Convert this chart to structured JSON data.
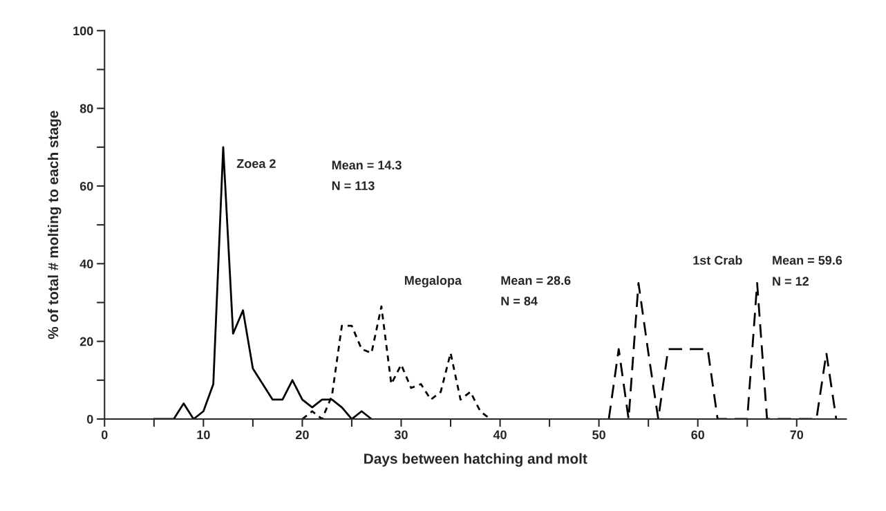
{
  "chart_data": {
    "type": "line",
    "xlabel": "Days between hatching and molt",
    "ylabel": "% of total # molting to each stage",
    "xlim": [
      0,
      75
    ],
    "ylim": [
      0,
      100
    ],
    "xticks": [
      0,
      {
        "value": 5,
        "label": null
      },
      10,
      {
        "value": 15,
        "label": null
      },
      20,
      {
        "value": 25,
        "label": null
      },
      30,
      {
        "value": 35,
        "label": null
      },
      40,
      {
        "value": 45,
        "label": null
      },
      50,
      {
        "value": 55,
        "label": null
      },
      60,
      {
        "value": 65,
        "label": null
      },
      70
    ],
    "yticks": [
      0,
      {
        "value": 10,
        "label": null
      },
      20,
      {
        "value": 30,
        "label": null
      },
      40,
      {
        "value": 50,
        "label": null
      },
      60,
      {
        "value": 70,
        "label": null
      },
      80,
      {
        "value": 90,
        "label": null
      },
      100
    ],
    "grid": false,
    "legend": false,
    "marker": "none",
    "series": [
      {
        "name": "Zoea 2",
        "color": "#000000",
        "line_style": "solid",
        "x": [
          5,
          6,
          7,
          8,
          9,
          10,
          11,
          12,
          13,
          14,
          15,
          16,
          17,
          18,
          19,
          20,
          21,
          22,
          23,
          24,
          25,
          26,
          27
        ],
        "values": [
          0,
          0,
          0,
          4,
          0,
          2,
          9,
          70,
          22,
          28,
          13,
          9,
          5,
          5,
          10,
          5,
          3,
          5,
          5,
          3,
          0,
          2,
          0
        ]
      },
      {
        "name": "Megalopa",
        "color": "#000000",
        "line_style": "dotted",
        "x": [
          20,
          21,
          22,
          23,
          24,
          25,
          26,
          27,
          28,
          29,
          30,
          31,
          32,
          33,
          34,
          35,
          36,
          37,
          38,
          39
        ],
        "values": [
          0,
          2,
          0,
          6,
          24,
          24,
          18,
          17,
          29,
          9,
          14,
          8,
          9,
          5,
          7,
          17,
          5,
          7,
          2,
          0
        ]
      },
      {
        "name": "1st Crab",
        "color": "#000000",
        "line_style": "dashed",
        "x": [
          51,
          52,
          53,
          54,
          55,
          56,
          57,
          58,
          59,
          60,
          61,
          62,
          63,
          64,
          65,
          66,
          67,
          68,
          69,
          70,
          71,
          72,
          73,
          74
        ],
        "values": [
          0,
          18,
          0,
          35,
          17,
          0,
          18,
          18,
          18,
          18,
          18,
          0,
          0,
          0,
          0,
          35,
          0,
          0,
          0,
          0,
          0,
          0,
          17,
          0
        ]
      }
    ],
    "annotations": [
      "Mean = 14.3",
      "N = 113",
      "Mean = 28.6",
      "N = 84",
      "Mean = 59.6",
      "N = 12"
    ]
  }
}
